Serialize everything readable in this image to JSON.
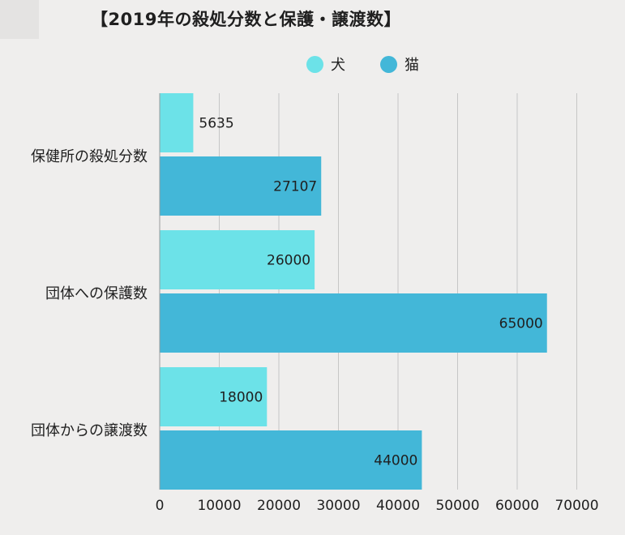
{
  "title": "【2019年の殺処分数と保護・譲渡数】",
  "legend": {
    "dog": "犬",
    "cat": "猫"
  },
  "colors": {
    "dog": "#6ce2e8",
    "cat": "#43b7d8",
    "grid": "#c6c6c6",
    "background": "#efeeed"
  },
  "chart_data": {
    "type": "bar",
    "orientation": "horizontal",
    "title": "【2019年の殺処分数と保護・譲渡数】",
    "categories": [
      "保健所の殺処分数",
      "団体への保護数",
      "団体からの譲渡数"
    ],
    "series": [
      {
        "name": "犬",
        "values": [
          5635,
          26000,
          18000
        ]
      },
      {
        "name": "猫",
        "values": [
          27107,
          65000,
          44000
        ]
      }
    ],
    "xlim": [
      0,
      70000
    ],
    "xticks": [
      0,
      10000,
      20000,
      30000,
      40000,
      50000,
      60000,
      70000
    ],
    "grid": true,
    "legend_position": "top"
  }
}
